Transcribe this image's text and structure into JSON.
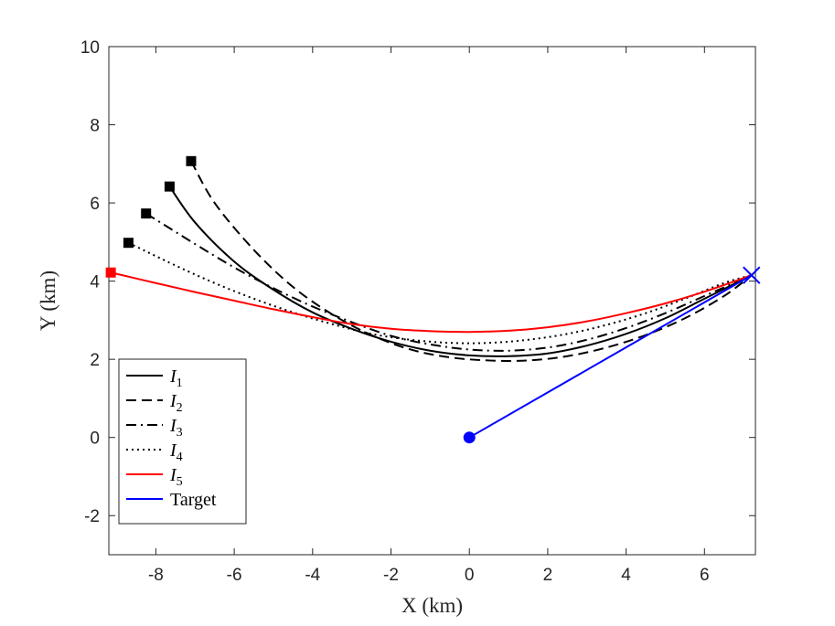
{
  "chart_data": {
    "type": "line",
    "xlabel": "X (km)",
    "ylabel": "Y (km)",
    "xlim": [
      -9.2,
      7.3
    ],
    "ylim": [
      -3,
      10
    ],
    "xticks": [
      -8,
      -6,
      -4,
      -2,
      0,
      2,
      4,
      6
    ],
    "yticks": [
      -2,
      0,
      2,
      4,
      6,
      8,
      10
    ],
    "xtick_labels": [
      "-8",
      "-6",
      "-4",
      "-2",
      "0",
      "2",
      "4",
      "6"
    ],
    "ytick_labels": [
      "-2",
      "0",
      "2",
      "4",
      "6",
      "8",
      "10"
    ],
    "legend_position": "bottom-left",
    "series": [
      {
        "name": "I1",
        "legend_base": "I",
        "legend_sub": "1",
        "style": "solid",
        "color": "#000000",
        "start_marker": "square",
        "points": [
          [
            -7.65,
            6.42
          ],
          [
            -7.0,
            5.5
          ],
          [
            -6.0,
            4.5
          ],
          [
            -5.0,
            3.78
          ],
          [
            -4.0,
            3.2
          ],
          [
            -3.0,
            2.78
          ],
          [
            -2.0,
            2.45
          ],
          [
            -1.0,
            2.22
          ],
          [
            0.0,
            2.1
          ],
          [
            1.0,
            2.08
          ],
          [
            2.0,
            2.15
          ],
          [
            3.0,
            2.35
          ],
          [
            4.0,
            2.65
          ],
          [
            5.0,
            3.05
          ],
          [
            6.0,
            3.55
          ],
          [
            7.2,
            4.15
          ]
        ]
      },
      {
        "name": "I2",
        "legend_base": "I",
        "legend_sub": "2",
        "style": "dashed",
        "color": "#000000",
        "start_marker": "square",
        "points": [
          [
            -7.1,
            7.07
          ],
          [
            -6.5,
            6.0
          ],
          [
            -5.5,
            4.8
          ],
          [
            -4.5,
            3.85
          ],
          [
            -3.5,
            3.15
          ],
          [
            -2.5,
            2.62
          ],
          [
            -1.5,
            2.25
          ],
          [
            -0.5,
            2.05
          ],
          [
            0.5,
            1.97
          ],
          [
            1.5,
            1.97
          ],
          [
            2.5,
            2.08
          ],
          [
            3.5,
            2.3
          ],
          [
            4.5,
            2.62
          ],
          [
            5.5,
            3.05
          ],
          [
            6.5,
            3.62
          ],
          [
            7.2,
            4.15
          ]
        ]
      },
      {
        "name": "I3",
        "legend_base": "I",
        "legend_sub": "3",
        "style": "dashdot",
        "color": "#000000",
        "start_marker": "square",
        "points": [
          [
            -8.25,
            5.73
          ],
          [
            -7.0,
            4.95
          ],
          [
            -6.0,
            4.35
          ],
          [
            -5.0,
            3.82
          ],
          [
            -4.0,
            3.35
          ],
          [
            -3.0,
            2.95
          ],
          [
            -2.0,
            2.6
          ],
          [
            -1.0,
            2.38
          ],
          [
            0.0,
            2.25
          ],
          [
            1.0,
            2.22
          ],
          [
            2.0,
            2.3
          ],
          [
            3.0,
            2.5
          ],
          [
            4.0,
            2.8
          ],
          [
            5.0,
            3.18
          ],
          [
            6.0,
            3.62
          ],
          [
            7.2,
            4.15
          ]
        ]
      },
      {
        "name": "I4",
        "legend_base": "I",
        "legend_sub": "4",
        "style": "dotted",
        "color": "#000000",
        "start_marker": "square",
        "points": [
          [
            -8.7,
            4.98
          ],
          [
            -7.5,
            4.4
          ],
          [
            -6.5,
            3.95
          ],
          [
            -5.5,
            3.55
          ],
          [
            -4.5,
            3.2
          ],
          [
            -3.5,
            2.9
          ],
          [
            -2.5,
            2.65
          ],
          [
            -1.5,
            2.5
          ],
          [
            -0.5,
            2.42
          ],
          [
            0.5,
            2.42
          ],
          [
            1.5,
            2.5
          ],
          [
            2.5,
            2.65
          ],
          [
            3.5,
            2.88
          ],
          [
            4.5,
            3.18
          ],
          [
            5.5,
            3.55
          ],
          [
            6.5,
            3.95
          ],
          [
            7.2,
            4.15
          ]
        ]
      },
      {
        "name": "I5",
        "legend_base": "I",
        "legend_sub": "5",
        "style": "solid",
        "color": "#ff0000",
        "start_marker": "square",
        "points": [
          [
            -9.15,
            4.22
          ],
          [
            -8.0,
            3.95
          ],
          [
            -7.0,
            3.72
          ],
          [
            -6.0,
            3.5
          ],
          [
            -5.0,
            3.28
          ],
          [
            -4.0,
            3.08
          ],
          [
            -3.0,
            2.9
          ],
          [
            -2.0,
            2.78
          ],
          [
            -1.0,
            2.72
          ],
          [
            0.0,
            2.7
          ],
          [
            1.0,
            2.73
          ],
          [
            2.0,
            2.82
          ],
          [
            3.0,
            2.97
          ],
          [
            4.0,
            3.18
          ],
          [
            5.0,
            3.43
          ],
          [
            6.0,
            3.73
          ],
          [
            7.2,
            4.15
          ]
        ]
      },
      {
        "name": "Target",
        "legend_base": "Target",
        "legend_sub": "",
        "style": "solid",
        "color": "#0000ff",
        "start_marker": "circle",
        "end_marker": "x",
        "points": [
          [
            0.0,
            0.0
          ],
          [
            7.2,
            4.15
          ]
        ]
      }
    ]
  }
}
